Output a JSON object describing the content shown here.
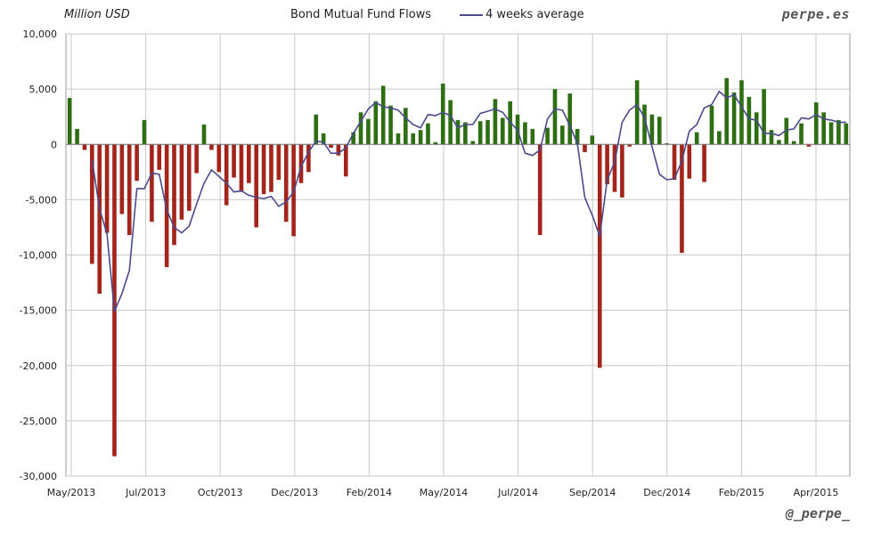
{
  "header": {
    "unit": "Million USD",
    "title": "Bond Mutual Fund Flows",
    "legend_label": "4 weeks average",
    "brand": "perpe.es",
    "handle": "@_perpe_"
  },
  "colors": {
    "positive": "#2e6e12",
    "negative": "#a3241a",
    "average_line": "#4a4a8c",
    "grid": "#c8c8c8"
  },
  "chart_data": {
    "type": "bar",
    "ylim": [
      -30000,
      10000
    ],
    "y_ticks": [
      10000,
      5000,
      0,
      -5000,
      -10000,
      -15000,
      -20000,
      -25000,
      -30000
    ],
    "y_tick_labels": [
      "10,000",
      "5,000",
      "0",
      "-5,000",
      "-10,000",
      "-15,000",
      "-20,000",
      "-25,000",
      "-30,000"
    ],
    "x_tick_labels": [
      "May/2013",
      "Jul/2013",
      "Oct/2013",
      "Dec/2013",
      "Feb/2014",
      "May/2014",
      "Jul/2014",
      "Sep/2014",
      "Dec/2014",
      "Feb/2015",
      "Apr/2015"
    ],
    "weekly_flows": [
      4200,
      1400,
      -500,
      -10800,
      -13500,
      -8000,
      -28200,
      -6300,
      -8200,
      -3300,
      2200,
      -7000,
      -2300,
      -11100,
      -9100,
      -6800,
      -6000,
      -2600,
      1800,
      -500,
      -2500,
      -5500,
      -3000,
      -4300,
      -3500,
      -7500,
      -4500,
      -4300,
      -3200,
      -7000,
      -8300,
      -3500,
      -2500,
      2700,
      1000,
      -300,
      -1000,
      -2900,
      1100,
      2900,
      2300,
      3900,
      5300,
      3500,
      1000,
      3300,
      1000,
      1300,
      1900,
      200,
      5500,
      4000,
      2200,
      2000,
      300,
      2100,
      2200,
      4100,
      2400,
      3900,
      2700,
      2000,
      1400,
      -8200,
      1500,
      5000,
      1700,
      4600,
      1400,
      -700,
      800,
      -20200,
      -3600,
      -4300,
      -4800,
      -200,
      5800,
      3600,
      2700,
      2500,
      100,
      -3200,
      -9800,
      -3100,
      1100,
      -3400,
      3500,
      1200,
      6000,
      4700,
      5800,
      4300,
      2900,
      5000,
      1300,
      400,
      2400,
      300,
      1900,
      -200,
      3800,
      2900,
      2000,
      2200,
      1900
    ],
    "four_week_average": [
      null,
      null,
      null,
      -1400,
      -5800,
      -8100,
      -15100,
      -13500,
      -11400,
      -4000,
      -4000,
      -2600,
      -2700,
      -5900,
      -7500,
      -8000,
      -7400,
      -5400,
      -3500,
      -2300,
      -2900,
      -3500,
      -4300,
      -4200,
      -4600,
      -4800,
      -4900,
      -4700,
      -5600,
      -5200,
      -4300,
      -2000,
      -700,
      300,
      200,
      -800,
      -800,
      -300,
      1000,
      2100,
      3200,
      3800,
      3400,
      3300,
      3100,
      2400,
      1800,
      1500,
      2700,
      2600,
      2900,
      2600,
      1500,
      1800,
      1800,
      2800,
      3000,
      3200,
      2900,
      2000,
      1300,
      -800,
      -1000,
      -500,
      2300,
      3200,
      3100,
      1700,
      100,
      -4800,
      -6400,
      -8300,
      -3200,
      -1600,
      2000,
      3100,
      3600,
      2400,
      -200,
      -2700,
      -3200,
      -3100,
      -1500,
      1200,
      1800,
      3300,
      3600,
      4800,
      4200,
      4500,
      3400,
      2300,
      2200,
      1000,
      1000,
      800,
      1300,
      1400,
      2400,
      2300,
      2700,
      2300,
      2200,
      2000,
      2000
    ]
  }
}
